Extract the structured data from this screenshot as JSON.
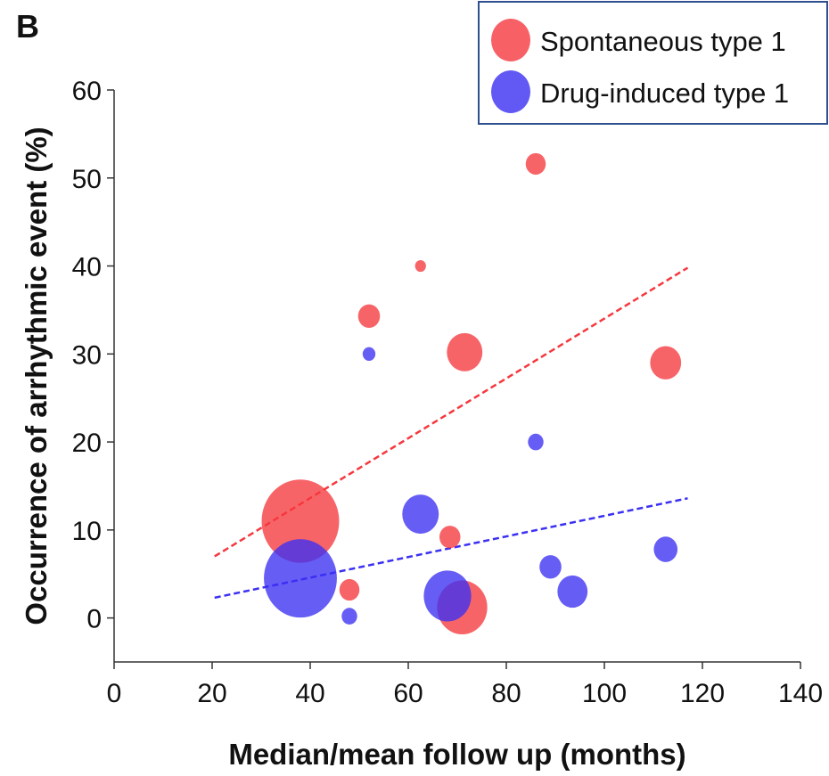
{
  "panel_label": "B",
  "colors": {
    "spontaneous": "#f5383e",
    "drug": "#3b30f2",
    "legend_border": "#2f4f8f",
    "axis": "#333333"
  },
  "chart_data": {
    "type": "scatter",
    "subtype": "bubble",
    "xlabel": "Median/mean follow up (months)",
    "ylabel": "Occurrence of arrhythmic event (%)",
    "xlim": [
      0,
      140
    ],
    "ylim": [
      -5,
      60
    ],
    "xticks": [
      0,
      20,
      40,
      60,
      80,
      100,
      120,
      140
    ],
    "yticks": [
      0,
      10,
      20,
      30,
      40,
      50,
      60
    ],
    "grid": false,
    "legend_position": "top-right",
    "series": [
      {
        "name": "Spontaneous type 1",
        "color": "#f5383e",
        "points": [
          {
            "x": 38,
            "y": 11,
            "size": 8.5
          },
          {
            "x": 48,
            "y": 3.2,
            "size": 2.2
          },
          {
            "x": 52,
            "y": 34.3,
            "size": 2.4
          },
          {
            "x": 62.5,
            "y": 40,
            "size": 1.2
          },
          {
            "x": 68.5,
            "y": 9.2,
            "size": 2.3
          },
          {
            "x": 71,
            "y": 1.2,
            "size": 5.5
          },
          {
            "x": 71.5,
            "y": 30.2,
            "size": 3.9
          },
          {
            "x": 86,
            "y": 51.6,
            "size": 2.2
          },
          {
            "x": 112.5,
            "y": 29,
            "size": 3.4
          }
        ],
        "trend": {
          "x": [
            20.5,
            117
          ],
          "y": [
            7,
            39.8
          ]
        }
      },
      {
        "name": "Drug-induced type 1",
        "color": "#3b30f2",
        "points": [
          {
            "x": 38,
            "y": 4.5,
            "size": 8.0
          },
          {
            "x": 48,
            "y": 0.2,
            "size": 1.7
          },
          {
            "x": 52,
            "y": 30,
            "size": 1.4
          },
          {
            "x": 62.5,
            "y": 11.8,
            "size": 4.0
          },
          {
            "x": 68,
            "y": 2.5,
            "size": 5.2
          },
          {
            "x": 86,
            "y": 20,
            "size": 1.7
          },
          {
            "x": 89,
            "y": 5.8,
            "size": 2.4
          },
          {
            "x": 93.5,
            "y": 3,
            "size": 3.3
          },
          {
            "x": 112.5,
            "y": 7.8,
            "size": 2.6
          }
        ],
        "trend": {
          "x": [
            20.5,
            117
          ],
          "y": [
            2.3,
            13.6
          ]
        }
      }
    ]
  }
}
